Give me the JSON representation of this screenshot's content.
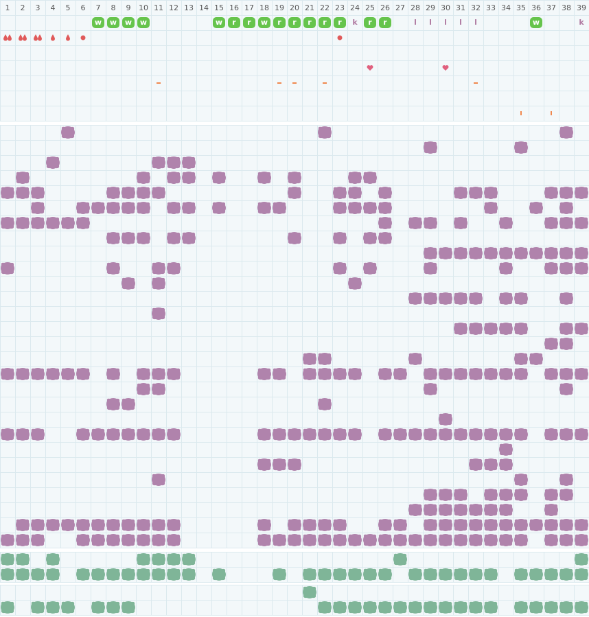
{
  "header": {
    "columns": [
      1,
      2,
      3,
      4,
      5,
      6,
      7,
      8,
      9,
      10,
      11,
      12,
      13,
      14,
      15,
      16,
      17,
      18,
      19,
      20,
      21,
      22,
      23,
      24,
      25,
      26,
      27,
      28,
      29,
      30,
      31,
      32,
      33,
      34,
      35,
      36,
      37,
      38,
      39
    ]
  },
  "top": {
    "tiles": [
      {
        "col": 7,
        "label": "w"
      },
      {
        "col": 8,
        "label": "w"
      },
      {
        "col": 9,
        "label": "w"
      },
      {
        "col": 10,
        "label": "w"
      },
      {
        "col": 15,
        "label": "w"
      },
      {
        "col": 16,
        "label": "r"
      },
      {
        "col": 17,
        "label": "r"
      },
      {
        "col": 18,
        "label": "w"
      },
      {
        "col": 19,
        "label": "r"
      },
      {
        "col": 20,
        "label": "r"
      },
      {
        "col": 21,
        "label": "r"
      },
      {
        "col": 22,
        "label": "r"
      },
      {
        "col": 23,
        "label": "r"
      },
      {
        "col": 25,
        "label": "r"
      },
      {
        "col": 26,
        "label": "r"
      },
      {
        "col": 36,
        "label": "w"
      }
    ],
    "letters": [
      {
        "col": 24,
        "label": "k"
      },
      {
        "col": 28,
        "label": "l"
      },
      {
        "col": 29,
        "label": "l"
      },
      {
        "col": 30,
        "label": "l"
      },
      {
        "col": 31,
        "label": "l"
      },
      {
        "col": 32,
        "label": "l"
      },
      {
        "col": 39,
        "label": "k"
      }
    ],
    "drops": [
      {
        "col": 1,
        "count": 2
      },
      {
        "col": 2,
        "count": 2
      },
      {
        "col": 3,
        "count": 2
      },
      {
        "col": 4,
        "count": 1
      },
      {
        "col": 5,
        "count": 1
      }
    ],
    "dots": [
      6,
      23
    ],
    "hearts": [
      25,
      30
    ],
    "dashes": [
      11,
      19,
      20,
      22,
      32
    ],
    "ticks": [
      35,
      37
    ]
  },
  "purple": {
    "color": "#b083ac",
    "rows": [
      [
        5,
        22,
        38
      ],
      [
        29,
        35
      ],
      [
        4,
        11,
        12,
        13
      ],
      [
        2,
        10,
        12,
        13,
        15,
        18,
        20,
        24,
        25
      ],
      [
        1,
        2,
        3,
        8,
        9,
        10,
        11,
        20,
        23,
        24,
        26,
        31,
        32,
        33,
        37,
        38,
        39
      ],
      [
        3,
        6,
        7,
        8,
        9,
        10,
        12,
        13,
        15,
        18,
        19,
        23,
        24,
        25,
        26,
        33,
        36,
        38
      ],
      [
        1,
        2,
        3,
        4,
        5,
        6,
        26,
        28,
        29,
        31,
        34,
        37,
        38,
        39
      ],
      [
        8,
        9,
        10,
        12,
        13,
        20,
        23,
        25,
        26
      ],
      [
        29,
        30,
        31,
        32,
        33,
        34,
        35,
        36,
        37,
        38,
        39
      ],
      [
        1,
        8,
        11,
        12,
        23,
        25,
        29,
        34,
        37,
        38,
        39
      ],
      [
        9,
        11,
        24
      ],
      [
        28,
        29,
        30,
        31,
        32,
        34,
        35,
        38
      ],
      [
        11
      ],
      [
        31,
        32,
        33,
        34,
        35,
        38,
        39
      ],
      [
        37,
        38
      ],
      [
        21,
        22,
        28,
        35,
        36
      ],
      [
        1,
        2,
        3,
        4,
        5,
        6,
        8,
        10,
        11,
        12,
        18,
        19,
        21,
        22,
        23,
        24,
        26,
        27,
        29,
        30,
        31,
        32,
        33,
        34,
        35,
        37,
        38,
        39
      ],
      [
        10,
        11,
        29,
        38
      ],
      [
        8,
        9,
        22
      ],
      [
        30
      ],
      [
        1,
        2,
        3,
        6,
        7,
        8,
        9,
        10,
        11,
        12,
        18,
        19,
        20,
        21,
        22,
        23,
        24,
        26,
        27,
        28,
        29,
        30,
        31,
        32,
        33,
        34,
        35,
        37,
        38,
        39
      ],
      [
        34
      ],
      [
        18,
        19,
        20,
        32,
        33,
        34
      ],
      [
        11,
        35,
        38
      ],
      [
        29,
        30,
        31,
        33,
        34,
        35,
        37,
        38
      ],
      [
        28,
        29,
        30,
        31,
        32,
        33,
        34,
        37
      ],
      [
        2,
        3,
        4,
        5,
        6,
        7,
        8,
        9,
        10,
        11,
        12,
        18,
        20,
        21,
        22,
        23,
        26,
        27,
        29,
        30,
        31,
        32,
        33,
        34,
        35,
        36,
        37,
        38,
        39
      ],
      [
        1,
        2,
        3,
        6,
        7,
        8,
        9,
        10,
        11,
        12,
        18,
        19,
        20,
        21,
        22,
        23,
        24,
        25,
        26,
        27,
        28,
        29,
        30,
        31,
        32,
        33,
        34,
        35,
        37,
        38,
        39
      ]
    ]
  },
  "green_a": {
    "color": "#7fb598",
    "rows": [
      [
        1,
        2,
        4,
        10,
        11,
        12,
        13,
        27,
        39
      ],
      [
        1,
        2,
        3,
        4,
        6,
        7,
        8,
        9,
        10,
        11,
        12,
        13,
        15,
        19,
        21,
        22,
        23,
        24,
        25,
        26,
        28,
        29,
        30,
        31,
        32,
        33,
        35,
        36,
        37,
        38,
        39
      ]
    ]
  },
  "green_b": {
    "color": "#7fb598",
    "rows": [
      [
        21
      ],
      [
        1,
        3,
        4,
        5,
        7,
        8,
        9,
        22,
        23,
        24,
        25,
        26,
        27,
        28,
        29,
        30,
        31,
        32,
        33,
        35,
        36,
        37,
        38,
        39
      ]
    ]
  }
}
